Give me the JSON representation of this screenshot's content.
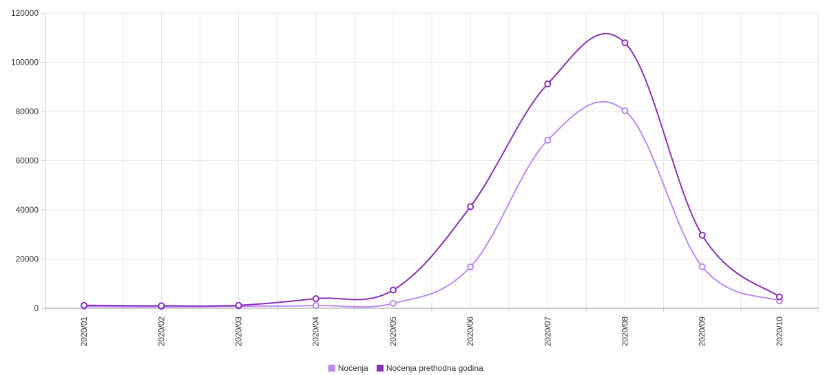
{
  "chart_data": {
    "type": "line",
    "title": "",
    "xlabel": "",
    "ylabel": "",
    "categories": [
      "2020/01",
      "2020/02",
      "2020/03",
      "2020/04",
      "2020/05",
      "2020/06",
      "2020/07",
      "2020/08",
      "2020/09",
      "2020/10"
    ],
    "ylim": [
      0,
      120000
    ],
    "yticks": [
      0,
      20000,
      40000,
      60000,
      80000,
      100000,
      120000
    ],
    "grid": true,
    "legend_position": "bottom",
    "series": [
      {
        "name": "Noćenja",
        "color": "#b98af5",
        "values": [
          700,
          600,
          800,
          1100,
          2000,
          16800,
          68300,
          80300,
          16900,
          3000
        ]
      },
      {
        "name": "Noćenja prethodna godina",
        "color": "#8a2fb8",
        "values": [
          1200,
          1000,
          1200,
          3900,
          7400,
          41300,
          91200,
          107900,
          29700,
          4600
        ]
      }
    ]
  }
}
